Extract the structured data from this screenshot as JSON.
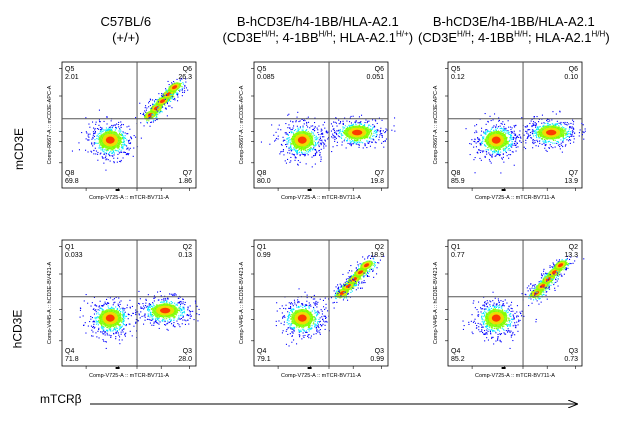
{
  "columns": [
    {
      "line1": "C57BL/6",
      "line2": "(+/+)"
    },
    {
      "line1": "B-hCD3E/h4-1BB/HLA-A2.1",
      "line2_parts": [
        "(CD3E",
        "H/H",
        "; 4-1BB",
        "H/H",
        "; HLA-A2.1",
        "H/+",
        ")"
      ]
    },
    {
      "line1": "B-hCD3E/h4-1BB/HLA-A2.1",
      "line2_parts": [
        "(CD3E",
        "H/H",
        "; 4-1BB",
        "H/H",
        "; HLA-A2.1",
        "H/H",
        ")"
      ]
    }
  ],
  "rows": [
    {
      "label": "mCD3E"
    },
    {
      "label": "hCD3E"
    }
  ],
  "x_label": "mTCRβ",
  "colors": {
    "low": "#0000ff",
    "mid1": "#00e5ff",
    "mid2": "#7fff00",
    "mid3": "#ffd700",
    "high": "#ff2000",
    "gate": "#555555"
  },
  "chart_data": [
    {
      "type": "scatter",
      "row": 0,
      "col": 0,
      "xlabel": "Comp-V725-A :: mTCR-BV711-A",
      "ylabel": "Comp-R667-A :: mCD3E-APC-A",
      "quadrants": [
        {
          "name": "Q5",
          "value": "2.01",
          "pos": "top-left"
        },
        {
          "name": "Q6",
          "value": "26.3",
          "pos": "top-right"
        },
        {
          "name": "Q8",
          "value": "69.8",
          "pos": "bottom-left"
        },
        {
          "name": "Q7",
          "value": "1.86",
          "pos": "bottom-right"
        }
      ],
      "populations": [
        "neg",
        "diag"
      ]
    },
    {
      "type": "scatter",
      "row": 0,
      "col": 1,
      "xlabel": "Comp-V725-A :: mTCR-BV711-A",
      "ylabel": "Comp-R667-A :: mCD3E-APC-A",
      "quadrants": [
        {
          "name": "Q5",
          "value": "0.085",
          "pos": "top-left"
        },
        {
          "name": "Q6",
          "value": "0.051",
          "pos": "top-right"
        },
        {
          "name": "Q8",
          "value": "80.0",
          "pos": "bottom-left"
        },
        {
          "name": "Q7",
          "value": "19.8",
          "pos": "bottom-right"
        }
      ],
      "populations": [
        "neg",
        "right"
      ]
    },
    {
      "type": "scatter",
      "row": 0,
      "col": 2,
      "xlabel": "Comp-V725-A :: mTCR-BV711-A",
      "ylabel": "Comp-R667-A :: mCD3E-APC-A",
      "quadrants": [
        {
          "name": "Q5",
          "value": "0.12",
          "pos": "top-left"
        },
        {
          "name": "Q6",
          "value": "0.10",
          "pos": "top-right"
        },
        {
          "name": "Q8",
          "value": "85.9",
          "pos": "bottom-left"
        },
        {
          "name": "Q7",
          "value": "13.9",
          "pos": "bottom-right"
        }
      ],
      "populations": [
        "neg",
        "right"
      ]
    },
    {
      "type": "scatter",
      "row": 1,
      "col": 0,
      "xlabel": "Comp-V725-A :: mTCR-BV711-A",
      "ylabel": "Comp-V445-A :: hCD3E-BV421-A",
      "quadrants": [
        {
          "name": "Q1",
          "value": "0.033",
          "pos": "top-left"
        },
        {
          "name": "Q2",
          "value": "0.13",
          "pos": "top-right"
        },
        {
          "name": "Q4",
          "value": "71.8",
          "pos": "bottom-left"
        },
        {
          "name": "Q3",
          "value": "28.0",
          "pos": "bottom-right"
        }
      ],
      "populations": [
        "neg",
        "right"
      ]
    },
    {
      "type": "scatter",
      "row": 1,
      "col": 1,
      "xlabel": "Comp-V725-A :: mTCR-BV711-A",
      "ylabel": "Comp-V445-A :: hCD3E-BV421-A",
      "quadrants": [
        {
          "name": "Q1",
          "value": "0.99",
          "pos": "top-left"
        },
        {
          "name": "Q2",
          "value": "18.9",
          "pos": "top-right"
        },
        {
          "name": "Q4",
          "value": "79.1",
          "pos": "bottom-left"
        },
        {
          "name": "Q3",
          "value": "0.99",
          "pos": "bottom-right"
        }
      ],
      "populations": [
        "neg",
        "diag"
      ]
    },
    {
      "type": "scatter",
      "row": 1,
      "col": 2,
      "xlabel": "Comp-V725-A :: mTCR-BV711-A",
      "ylabel": "Comp-V445-A :: hCD3E-BV421-A",
      "quadrants": [
        {
          "name": "Q1",
          "value": "0.77",
          "pos": "top-left"
        },
        {
          "name": "Q2",
          "value": "13.3",
          "pos": "top-right"
        },
        {
          "name": "Q4",
          "value": "85.2",
          "pos": "bottom-left"
        },
        {
          "name": "Q3",
          "value": "0.73",
          "pos": "bottom-right"
        }
      ],
      "populations": [
        "neg",
        "diag"
      ]
    }
  ]
}
